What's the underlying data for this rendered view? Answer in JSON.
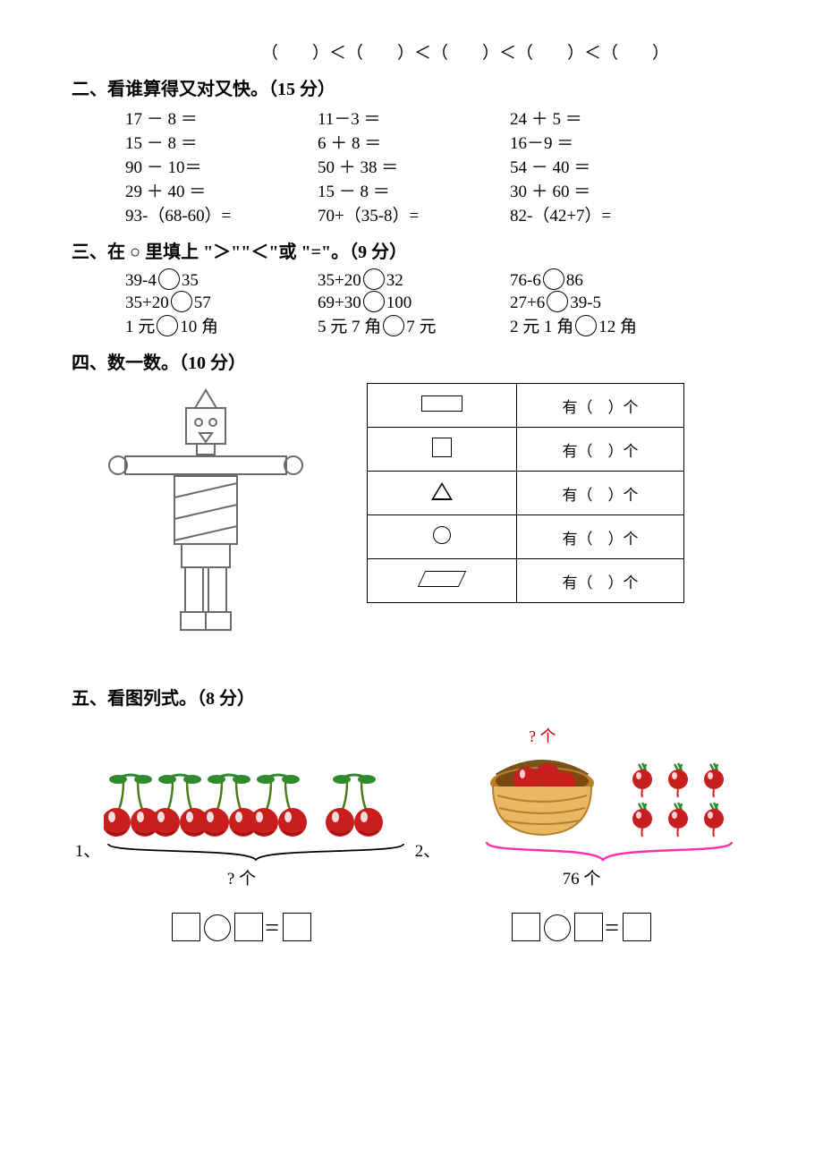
{
  "ordering_line": "（　　）＜（　　）＜（　　）＜（　　）＜（　　）",
  "s2": {
    "title": "二、看谁算得又对又快。（15 分）",
    "rows": [
      [
        "17 － 8 ＝",
        "11－3 ＝",
        "24 ＋ 5 ＝"
      ],
      [
        "15 － 8 ＝",
        "6 ＋ 8 ＝",
        "16－9 ＝"
      ],
      [
        "90 － 10＝",
        "50 ＋ 38 ＝",
        "54 － 40 ＝"
      ],
      [
        "29 ＋ 40 ＝",
        "15 － 8 ＝",
        "30 ＋ 60 ＝"
      ],
      [
        "93-（68-60）=",
        "70+（35-8）=",
        "82-（42+7）="
      ]
    ]
  },
  "s3": {
    "title": "三、在 ○ 里填上 \"＞\"\"＜\"或 \"=\"。（9 分）",
    "rows": [
      [
        [
          "39-4",
          "35"
        ],
        [
          "35+20",
          "32"
        ],
        [
          "76-6",
          "86"
        ]
      ],
      [
        [
          "35+20",
          "57"
        ],
        [
          "69+30",
          "100"
        ],
        [
          "27+6",
          "39-5"
        ]
      ],
      [
        [
          "1 元",
          "10 角"
        ],
        [
          "5 元 7 角",
          "7 元"
        ],
        [
          "2 元 1 角",
          "12 角"
        ]
      ]
    ]
  },
  "s4": {
    "title": "四、数一数。（10 分）",
    "table_answer_text": "有（　）个",
    "shapes": [
      "rect",
      "square",
      "triangle",
      "circle",
      "parallelogram"
    ]
  },
  "s5": {
    "title": "五、看图列式。（8 分）",
    "p1": {
      "index": "1、",
      "under": "? 个"
    },
    "p2": {
      "index": "2、",
      "top": "? 个",
      "under": "76 个"
    }
  },
  "colors": {
    "cherry_red": "#c81e1e",
    "cherry_dark": "#9a0f0f",
    "cherry_hl": "#fff",
    "leaf": "#2e8b2e",
    "stem": "#4a7c1c",
    "basket": "#e8b863",
    "basket_dark": "#b87f2b",
    "basket_handle": "#7a5218",
    "brace_pink": "#ff2fb0",
    "robot_line": "#6a6a6a"
  }
}
